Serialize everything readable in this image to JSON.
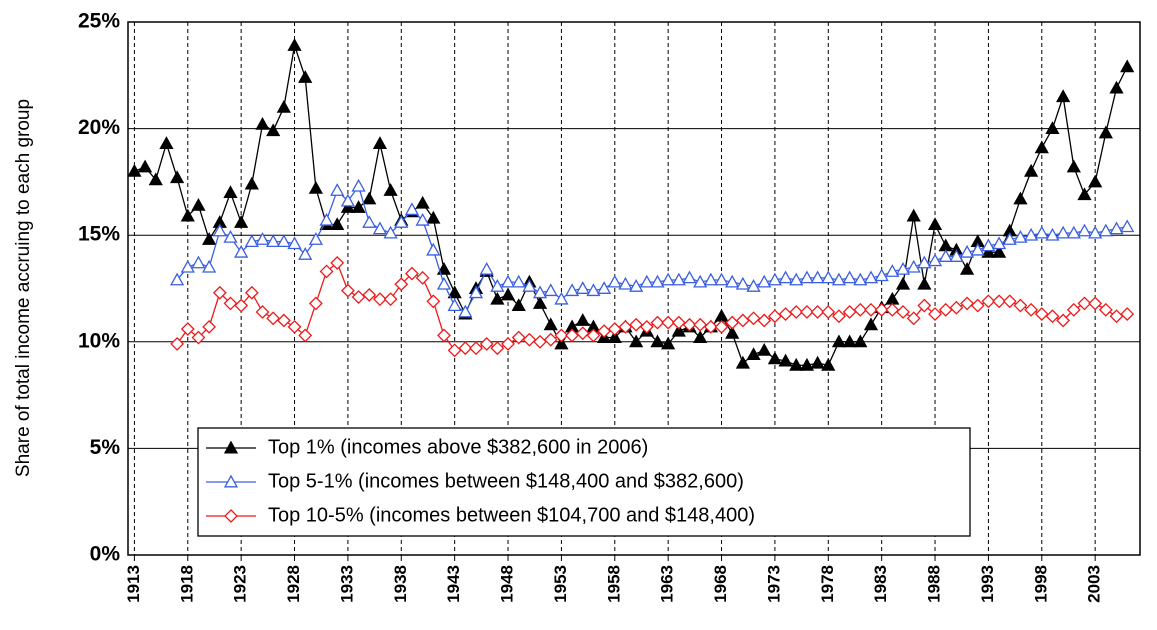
{
  "chart_data": {
    "type": "line",
    "y_label": "Share of total income accruing to each group",
    "x": [
      1913,
      1914,
      1915,
      1916,
      1917,
      1918,
      1919,
      1920,
      1921,
      1922,
      1923,
      1924,
      1925,
      1926,
      1927,
      1928,
      1929,
      1930,
      1931,
      1932,
      1933,
      1934,
      1935,
      1936,
      1937,
      1938,
      1939,
      1940,
      1941,
      1942,
      1943,
      1944,
      1945,
      1946,
      1947,
      1948,
      1949,
      1950,
      1951,
      1952,
      1953,
      1954,
      1955,
      1956,
      1957,
      1958,
      1959,
      1960,
      1961,
      1962,
      1963,
      1964,
      1965,
      1966,
      1967,
      1968,
      1969,
      1970,
      1971,
      1972,
      1973,
      1974,
      1975,
      1976,
      1977,
      1978,
      1979,
      1980,
      1981,
      1982,
      1983,
      1984,
      1985,
      1986,
      1987,
      1988,
      1989,
      1990,
      1991,
      1992,
      1993,
      1994,
      1995,
      1996,
      1997,
      1998,
      1999,
      2000,
      2001,
      2002,
      2003,
      2004,
      2005,
      2006
    ],
    "xlim": [
      1912.4,
      2007.2
    ],
    "xticks": [
      1913,
      1918,
      1923,
      1928,
      1933,
      1938,
      1943,
      1948,
      1953,
      1958,
      1963,
      1968,
      1973,
      1978,
      1983,
      1988,
      1993,
      1998,
      2003
    ],
    "ylim": [
      0,
      25
    ],
    "yticks": [
      {
        "value": 0,
        "label": "0%"
      },
      {
        "value": 5,
        "label": "5%"
      },
      {
        "value": 10,
        "label": "10%"
      },
      {
        "value": 15,
        "label": "15%"
      },
      {
        "value": 20,
        "label": "20%"
      },
      {
        "value": 25,
        "label": "25%"
      }
    ],
    "grid": true,
    "legend_position": "lower center",
    "series": [
      {
        "name": "Top 1% (incomes above $382,600 in 2006)",
        "color": "#000000",
        "marker": "triangle-filled",
        "values": [
          18.0,
          18.2,
          17.6,
          19.3,
          17.7,
          15.9,
          16.4,
          14.8,
          15.6,
          17.0,
          15.6,
          17.4,
          20.2,
          19.9,
          21.0,
          23.9,
          22.4,
          17.2,
          15.5,
          15.5,
          16.3,
          16.3,
          16.7,
          19.3,
          17.1,
          15.7,
          16.1,
          16.5,
          15.8,
          13.4,
          12.3,
          11.3,
          12.5,
          13.3,
          12.0,
          12.2,
          11.7,
          12.8,
          11.8,
          10.8,
          9.9,
          10.7,
          11.0,
          10.7,
          10.2,
          10.2,
          10.7,
          10.0,
          10.5,
          10.0,
          9.9,
          10.5,
          10.7,
          10.2,
          10.7,
          11.2,
          10.4,
          9.0,
          9.4,
          9.6,
          9.2,
          9.1,
          8.9,
          8.9,
          9.0,
          8.9,
          10.0,
          10.0,
          10.0,
          10.8,
          11.6,
          12.0,
          12.7,
          15.9,
          12.7,
          15.5,
          14.5,
          14.3,
          13.4,
          14.7,
          14.2,
          14.2,
          15.2,
          16.7,
          18.0,
          19.1,
          20.0,
          21.5,
          18.2,
          16.9,
          17.5,
          19.8,
          21.9,
          22.9
        ]
      },
      {
        "name": "Top 5-1% (incomes between $148,400 and $382,600)",
        "color": "#3a5fe0",
        "marker": "triangle-open",
        "values": [
          null,
          null,
          null,
          null,
          12.9,
          13.5,
          13.7,
          13.5,
          15.2,
          14.9,
          14.2,
          14.7,
          14.8,
          14.7,
          14.7,
          14.6,
          14.1,
          14.8,
          15.7,
          17.1,
          16.6,
          17.3,
          15.6,
          15.3,
          15.1,
          15.6,
          16.2,
          15.7,
          14.3,
          12.7,
          11.7,
          11.4,
          12.3,
          13.4,
          12.6,
          12.8,
          12.8,
          12.6,
          12.3,
          12.4,
          12.0,
          12.4,
          12.5,
          12.4,
          12.5,
          12.8,
          12.7,
          12.6,
          12.8,
          12.8,
          12.9,
          12.9,
          13.0,
          12.8,
          12.9,
          12.9,
          12.8,
          12.7,
          12.6,
          12.8,
          12.9,
          13.0,
          12.9,
          13.0,
          13.0,
          13.0,
          12.9,
          13.0,
          12.9,
          13.0,
          13.1,
          13.3,
          13.4,
          13.5,
          13.7,
          13.8,
          14.0,
          14.0,
          14.2,
          14.3,
          14.5,
          14.6,
          14.8,
          14.9,
          15.0,
          15.1,
          15.0,
          15.1,
          15.1,
          15.2,
          15.1,
          15.2,
          15.3,
          15.4
        ]
      },
      {
        "name": "Top 10-5% (incomes between $104,700 and $148,400)",
        "color": "#f01818",
        "marker": "diamond-open",
        "values": [
          null,
          null,
          null,
          null,
          9.9,
          10.6,
          10.2,
          10.7,
          12.3,
          11.8,
          11.7,
          12.3,
          11.4,
          11.1,
          11.0,
          10.7,
          10.3,
          11.8,
          13.3,
          13.7,
          12.4,
          12.1,
          12.2,
          12.0,
          12.0,
          12.7,
          13.2,
          13.0,
          11.9,
          10.3,
          9.6,
          9.7,
          9.7,
          9.9,
          9.7,
          9.9,
          10.2,
          10.1,
          10.0,
          10.1,
          10.3,
          10.3,
          10.4,
          10.3,
          10.5,
          10.6,
          10.7,
          10.8,
          10.7,
          10.9,
          10.9,
          10.9,
          10.8,
          10.8,
          10.7,
          10.7,
          10.9,
          11.0,
          11.1,
          11.0,
          11.2,
          11.3,
          11.4,
          11.4,
          11.4,
          11.4,
          11.2,
          11.4,
          11.5,
          11.5,
          11.5,
          11.5,
          11.4,
          11.1,
          11.7,
          11.3,
          11.5,
          11.6,
          11.8,
          11.7,
          11.9,
          11.9,
          11.9,
          11.7,
          11.5,
          11.3,
          11.2,
          11.0,
          11.5,
          11.8,
          11.8,
          11.5,
          11.2,
          11.3
        ]
      }
    ]
  }
}
